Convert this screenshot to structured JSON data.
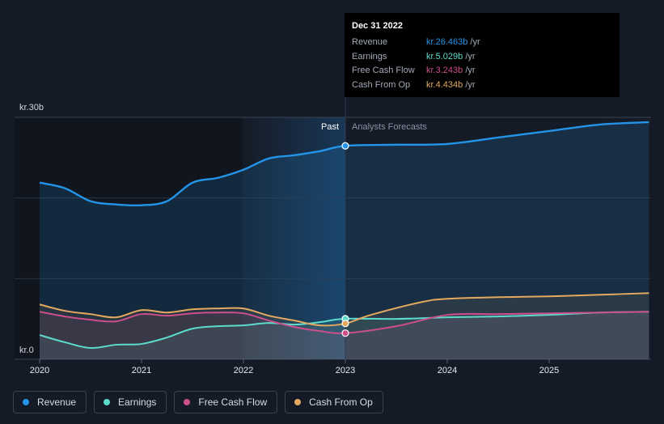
{
  "chart_data": {
    "type": "area",
    "y_axis": {
      "top_label": "kr.30b",
      "bottom_label": "kr.0",
      "ylim": [
        0,
        30
      ]
    },
    "x_ticks": [
      "2020",
      "2021",
      "2022",
      "2023",
      "2024",
      "2025"
    ],
    "section_labels": {
      "past": "Past",
      "forecast": "Analysts Forecasts"
    },
    "divider_x": 2023.0,
    "series": [
      {
        "name": "Revenue",
        "color": "#2394e8",
        "points": [
          [
            2020.0,
            21.9
          ],
          [
            2020.25,
            21.2
          ],
          [
            2020.5,
            19.6
          ],
          [
            2020.75,
            19.2
          ],
          [
            2021.0,
            19.1
          ],
          [
            2021.25,
            19.6
          ],
          [
            2021.5,
            21.9
          ],
          [
            2021.75,
            22.5
          ],
          [
            2022.0,
            23.5
          ],
          [
            2022.25,
            24.9
          ],
          [
            2022.5,
            25.3
          ],
          [
            2022.75,
            25.8
          ],
          [
            2023.0,
            26.463
          ],
          [
            2023.5,
            26.6
          ],
          [
            2024.0,
            26.7
          ],
          [
            2024.5,
            27.5
          ],
          [
            2025.0,
            28.3
          ],
          [
            2025.5,
            29.1
          ],
          [
            2025.98,
            29.4
          ]
        ]
      },
      {
        "name": "Earnings",
        "color": "#5cdbcc",
        "points": [
          [
            2020.0,
            3.0
          ],
          [
            2020.25,
            2.1
          ],
          [
            2020.5,
            1.4
          ],
          [
            2020.75,
            1.8
          ],
          [
            2021.0,
            1.9
          ],
          [
            2021.25,
            2.7
          ],
          [
            2021.5,
            3.8
          ],
          [
            2021.75,
            4.1
          ],
          [
            2022.0,
            4.2
          ],
          [
            2022.25,
            4.5
          ],
          [
            2022.5,
            4.3
          ],
          [
            2022.75,
            4.6
          ],
          [
            2023.0,
            5.029
          ],
          [
            2023.5,
            5.0
          ],
          [
            2024.0,
            5.2
          ],
          [
            2024.5,
            5.3
          ],
          [
            2025.0,
            5.5
          ],
          [
            2025.5,
            5.8
          ],
          [
            2025.98,
            5.9
          ]
        ]
      },
      {
        "name": "Free Cash Flow",
        "color": "#cc4f8c",
        "points": [
          [
            2020.0,
            5.9
          ],
          [
            2020.25,
            5.3
          ],
          [
            2020.5,
            4.9
          ],
          [
            2020.75,
            4.7
          ],
          [
            2021.0,
            5.6
          ],
          [
            2021.25,
            5.4
          ],
          [
            2021.5,
            5.7
          ],
          [
            2021.75,
            5.8
          ],
          [
            2022.0,
            5.7
          ],
          [
            2022.25,
            4.8
          ],
          [
            2022.5,
            4.0
          ],
          [
            2022.75,
            3.5
          ],
          [
            2023.0,
            3.243
          ],
          [
            2023.5,
            4.1
          ],
          [
            2024.0,
            5.5
          ],
          [
            2024.5,
            5.6
          ],
          [
            2025.0,
            5.7
          ],
          [
            2025.5,
            5.8
          ],
          [
            2025.98,
            5.9
          ]
        ]
      },
      {
        "name": "Cash From Op",
        "color": "#e3a95f",
        "points": [
          [
            2020.0,
            6.8
          ],
          [
            2020.25,
            6.0
          ],
          [
            2020.5,
            5.6
          ],
          [
            2020.75,
            5.2
          ],
          [
            2021.0,
            6.1
          ],
          [
            2021.25,
            5.8
          ],
          [
            2021.5,
            6.2
          ],
          [
            2021.75,
            6.3
          ],
          [
            2022.0,
            6.3
          ],
          [
            2022.25,
            5.4
          ],
          [
            2022.5,
            4.8
          ],
          [
            2022.75,
            4.2
          ],
          [
            2023.0,
            4.434
          ],
          [
            2023.25,
            5.5
          ],
          [
            2023.75,
            7.1
          ],
          [
            2024.0,
            7.5
          ],
          [
            2024.5,
            7.7
          ],
          [
            2025.0,
            7.8
          ],
          [
            2025.5,
            8.0
          ],
          [
            2025.98,
            8.2
          ]
        ]
      }
    ],
    "tooltip": {
      "date": "Dec 31 2022",
      "rows": [
        {
          "label": "Revenue",
          "value": "kr.26.463b",
          "unit": "/yr",
          "color": "#2394e8"
        },
        {
          "label": "Earnings",
          "value": "kr.5.029b",
          "unit": "/yr",
          "color": "#5cdbcc"
        },
        {
          "label": "Free Cash Flow",
          "value": "kr.3.243b",
          "unit": "/yr",
          "color": "#cc4f8c"
        },
        {
          "label": "Cash From Op",
          "value": "kr.4.434b",
          "unit": "/yr",
          "color": "#e3a95f"
        }
      ]
    }
  }
}
